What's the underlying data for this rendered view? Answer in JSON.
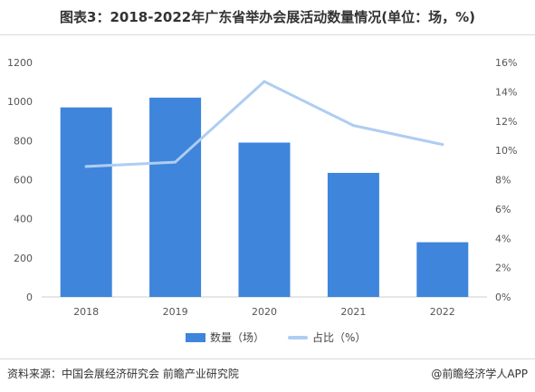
{
  "title": "图表3：2018-2022年广东省举办会展活动数量情况(单位：场，%)",
  "colors": {
    "bar": "#3e85db",
    "line": "#aecdf2",
    "grid": "#e6e6e6"
  },
  "chart_data": {
    "type": "bar",
    "categories": [
      "2018",
      "2019",
      "2020",
      "2021",
      "2022"
    ],
    "series": [
      {
        "name": "数量（场）",
        "type": "bar",
        "axis": "left",
        "values": [
          970,
          1020,
          790,
          635,
          280
        ]
      },
      {
        "name": "占比（%）",
        "type": "line",
        "axis": "right",
        "values": [
          8.9,
          9.2,
          14.7,
          11.7,
          10.4
        ]
      }
    ],
    "ylim_left": [
      0,
      1200
    ],
    "yticks_left": [
      "0",
      "200",
      "400",
      "600",
      "800",
      "1000",
      "1200"
    ],
    "ylim_right": [
      0,
      16
    ],
    "yticks_right": [
      "0%",
      "2%",
      "4%",
      "6%",
      "8%",
      "10%",
      "12%",
      "14%",
      "16%"
    ],
    "grid": false,
    "legend_position": "bottom"
  },
  "legend": {
    "bar_label": "数量（场）",
    "line_label": "占比（%）"
  },
  "footer": {
    "source": "资料来源：中国会展经济研究会 前瞻产业研究院",
    "brand": "@前瞻经济学人APP"
  }
}
